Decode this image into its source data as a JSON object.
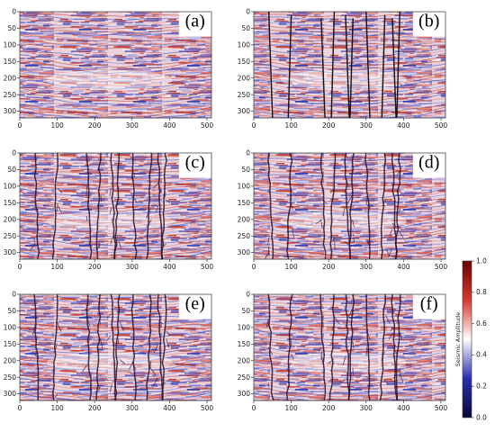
{
  "chart_data": {
    "type": "heatmap",
    "panels": [
      {
        "label": "(a)",
        "overlay": "none"
      },
      {
        "label": "(b)",
        "overlay": "fault-lines"
      },
      {
        "label": "(c)",
        "overlay": "fault-probability"
      },
      {
        "label": "(d)",
        "overlay": "fault-probability"
      },
      {
        "label": "(e)",
        "overlay": "fault-probability"
      },
      {
        "label": "(f)",
        "overlay": "fault-probability"
      }
    ],
    "x_ticks": [
      "0",
      "100",
      "200",
      "300",
      "400",
      "500"
    ],
    "y_ticks": [
      "0",
      "50",
      "100",
      "150",
      "200",
      "250",
      "300"
    ],
    "xlim": [
      0,
      512
    ],
    "ylim": [
      320,
      0
    ],
    "colorbar": {
      "label": "Seismic Amplitude",
      "range": [
        0.0,
        1.0
      ],
      "ticks": [
        "0.0",
        "0.2",
        "0.4",
        "0.6",
        "0.8",
        "1.0"
      ],
      "colormap": "seismic",
      "colors": [
        "#08083a",
        "#2a2fae",
        "#ffffff",
        "#d63a2e",
        "#6a0000"
      ]
    }
  }
}
